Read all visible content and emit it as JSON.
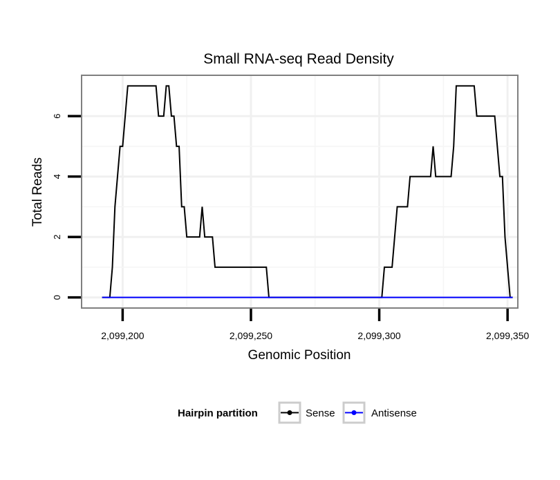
{
  "chart_data": {
    "type": "line",
    "title": "Small RNA-seq Read Density",
    "xlabel": "Genomic Position",
    "ylabel": "Total Reads",
    "xlim": [
      2099184,
      2099354
    ],
    "ylim": [
      -0.35,
      7.35
    ],
    "x_ticks": [
      2099200,
      2099250,
      2099300,
      2099350
    ],
    "x_tick_labels": [
      "2,099,200",
      "2,099,250",
      "2,099,300",
      "2,099,350"
    ],
    "y_ticks": [
      0,
      2,
      4,
      6
    ],
    "y_tick_labels": [
      "0",
      "2",
      "4",
      "6"
    ],
    "grid": true,
    "legend": {
      "title": "Hairpin partition",
      "position": "bottom",
      "entries": [
        {
          "name": "Sense",
          "color": "#000000"
        },
        {
          "name": "Antisense",
          "color": "#0000ff"
        }
      ]
    },
    "series": [
      {
        "name": "Sense",
        "color": "#000000",
        "points": [
          [
            2099192,
            0
          ],
          [
            2099195,
            0
          ],
          [
            2099196,
            1
          ],
          [
            2099197,
            3
          ],
          [
            2099198,
            4
          ],
          [
            2099199,
            5
          ],
          [
            2099200,
            5
          ],
          [
            2099201,
            6
          ],
          [
            2099202,
            7
          ],
          [
            2099213,
            7
          ],
          [
            2099214,
            6
          ],
          [
            2099216,
            6
          ],
          [
            2099217,
            7
          ],
          [
            2099218,
            7
          ],
          [
            2099219,
            6
          ],
          [
            2099220,
            6
          ],
          [
            2099221,
            5
          ],
          [
            2099222,
            5
          ],
          [
            2099223,
            3
          ],
          [
            2099224,
            3
          ],
          [
            2099225,
            2
          ],
          [
            2099230,
            2
          ],
          [
            2099231,
            3
          ],
          [
            2099232,
            2
          ],
          [
            2099235,
            2
          ],
          [
            2099236,
            1
          ],
          [
            2099256,
            1
          ],
          [
            2099257,
            0
          ],
          [
            2099301,
            0
          ],
          [
            2099302,
            1
          ],
          [
            2099305,
            1
          ],
          [
            2099306,
            2
          ],
          [
            2099307,
            3
          ],
          [
            2099311,
            3
          ],
          [
            2099312,
            4
          ],
          [
            2099320,
            4
          ],
          [
            2099321,
            5
          ],
          [
            2099322,
            4
          ],
          [
            2099328,
            4
          ],
          [
            2099329,
            5
          ],
          [
            2099330,
            7
          ],
          [
            2099337,
            7
          ],
          [
            2099338,
            6
          ],
          [
            2099345,
            6
          ],
          [
            2099346,
            5
          ],
          [
            2099347,
            4
          ],
          [
            2099348,
            4
          ],
          [
            2099349,
            2
          ],
          [
            2099351,
            0
          ],
          [
            2099352,
            0
          ]
        ]
      },
      {
        "name": "Antisense",
        "color": "#0000ff",
        "points": [
          [
            2099192,
            0
          ],
          [
            2099352,
            0
          ]
        ]
      }
    ]
  }
}
